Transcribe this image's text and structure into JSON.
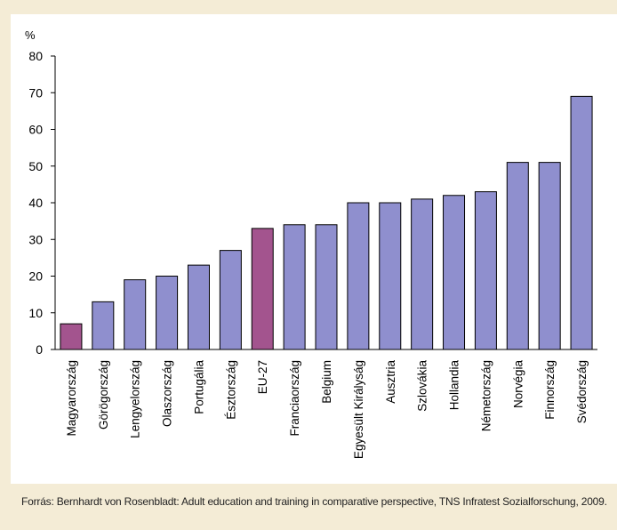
{
  "chart_data": {
    "type": "bar",
    "ylabel": "%",
    "ylim": [
      0,
      80
    ],
    "yticks": [
      0,
      10,
      20,
      30,
      40,
      50,
      60,
      70,
      80
    ],
    "grid": false,
    "categories": [
      "Magyarország",
      "Görögország",
      "Lengyelország",
      "Olaszország",
      "Portugália",
      "Észtország",
      "EU-27",
      "Franciaország",
      "Belgium",
      "Egyesült Királyság",
      "Ausztria",
      "Szlovákia",
      "Hollandia",
      "Németország",
      "Norvégia",
      "Finnország",
      "Svédország"
    ],
    "values": [
      7,
      13,
      19,
      20,
      23,
      27,
      33,
      34,
      34,
      40,
      40,
      41,
      42,
      43,
      51,
      51,
      69
    ],
    "colors": {
      "default": "#8f8fce",
      "highlight": "#a3548e",
      "edge": "#000000"
    },
    "highlighted": [
      "Magyarország",
      "EU-27"
    ]
  },
  "source": "Forrás: Bernhardt von Rosenbladt: Adult education and training in comparative perspective, TNS Infratest Sozialforschung, 2009."
}
